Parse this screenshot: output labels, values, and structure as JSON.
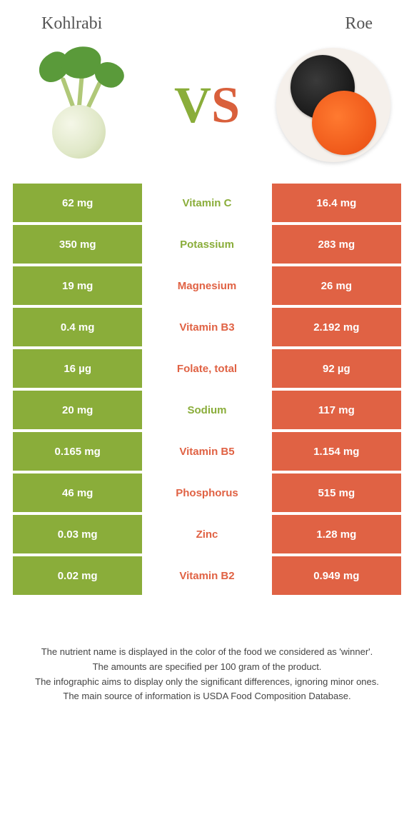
{
  "header": {
    "left": "Kohlrabi",
    "right": "Roe",
    "vs_v": "V",
    "vs_s": "S"
  },
  "colors": {
    "kohlrabi": "#8aad3a",
    "roe": "#e06244"
  },
  "rows": [
    {
      "left": "62 mg",
      "label": "Vitamin C",
      "right": "16.4 mg",
      "winner": "kohlrabi"
    },
    {
      "left": "350 mg",
      "label": "Potassium",
      "right": "283 mg",
      "winner": "kohlrabi"
    },
    {
      "left": "19 mg",
      "label": "Magnesium",
      "right": "26 mg",
      "winner": "roe"
    },
    {
      "left": "0.4 mg",
      "label": "Vitamin B3",
      "right": "2.192 mg",
      "winner": "roe"
    },
    {
      "left": "16 µg",
      "label": "Folate, total",
      "right": "92 µg",
      "winner": "roe"
    },
    {
      "left": "20 mg",
      "label": "Sodium",
      "right": "117 mg",
      "winner": "kohlrabi"
    },
    {
      "left": "0.165 mg",
      "label": "Vitamin B5",
      "right": "1.154 mg",
      "winner": "roe"
    },
    {
      "left": "46 mg",
      "label": "Phosphorus",
      "right": "515 mg",
      "winner": "roe"
    },
    {
      "left": "0.03 mg",
      "label": "Zinc",
      "right": "1.28 mg",
      "winner": "roe"
    },
    {
      "left": "0.02 mg",
      "label": "Vitamin B2",
      "right": "0.949 mg",
      "winner": "roe"
    }
  ],
  "footer": {
    "line1": "The nutrient name is displayed in the color of the food we considered as 'winner'.",
    "line2": "The amounts are specified per 100 gram of the product.",
    "line3": "The infographic aims to display only the significant differences, ignoring minor ones.",
    "line4": "The main source of information is USDA Food Composition Database."
  }
}
